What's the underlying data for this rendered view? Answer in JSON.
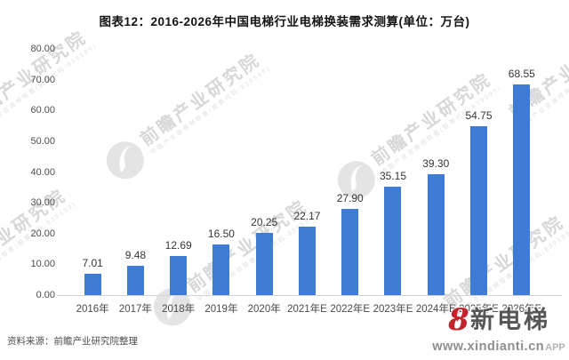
{
  "page": {
    "title": "图表12：2016-2026年中国电梯行业电梯换装需求测算(单位：万台)",
    "source": "资料来源：前瞻产业研究院整理"
  },
  "chart_data": {
    "type": "bar",
    "title": "图表12：2016-2026年中国电梯行业电梯换装需求测算(单位：万台)",
    "unit": "万台",
    "categories": [
      "2016年",
      "2017年",
      "2018年",
      "2019年",
      "2020年",
      "2021年E",
      "2022年E",
      "2023年E",
      "2024年E",
      "2025年E",
      "2026年E"
    ],
    "values": [
      7.01,
      9.48,
      12.69,
      16.5,
      20.25,
      22.17,
      27.9,
      35.15,
      39.3,
      54.75,
      68.55
    ],
    "ylim": [
      0,
      80
    ],
    "yticks": [
      "0.00",
      "10.00",
      "20.00",
      "30.00",
      "40.00",
      "50.00",
      "60.00",
      "70.00",
      "80.00"
    ],
    "grid": false,
    "legend": "none",
    "bar_color": "#3d7bd5",
    "axis_line_color": "#d5d5d5"
  },
  "watermark": {
    "text": "前瞻产业研究院",
    "subtext": "中国产业咨询领导者(股票代码:839599)"
  },
  "brand": {
    "name": "新电梯",
    "url": "www.xindianti.cn",
    "suffix": "APP",
    "accent_color": "#c4232b"
  },
  "icons": {
    "brand_mark": "8",
    "brand_heart": "♥"
  }
}
